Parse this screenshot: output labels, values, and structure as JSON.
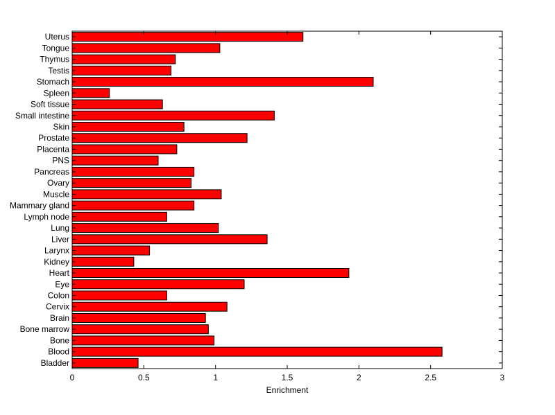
{
  "chart_data": {
    "type": "bar",
    "orientation": "horizontal",
    "categories": [
      "Uterus",
      "Tongue",
      "Thymus",
      "Testis",
      "Stomach",
      "Spleen",
      "Soft tissue",
      "Small intestine",
      "Skin",
      "Prostate",
      "Placenta",
      "PNS",
      "Pancreas",
      "Ovary",
      "Muscle",
      "Mammary gland",
      "Lymph node",
      "Lung",
      "Liver",
      "Larynx",
      "Kidney",
      "Heart",
      "Eye",
      "Colon",
      "Cervix",
      "Brain",
      "Bone marrow",
      "Bone",
      "Blood",
      "Bladder"
    ],
    "values": [
      1.61,
      1.03,
      0.72,
      0.69,
      2.1,
      0.26,
      0.63,
      1.41,
      0.78,
      1.22,
      0.73,
      0.6,
      0.85,
      0.83,
      1.04,
      0.85,
      0.66,
      1.02,
      1.36,
      0.54,
      0.43,
      1.93,
      1.2,
      0.66,
      1.08,
      0.93,
      0.95,
      0.99,
      2.58,
      0.46
    ],
    "title": "",
    "xlabel": "Enrichment",
    "ylabel": "",
    "xlim": [
      0,
      3
    ],
    "xticks": [
      "0",
      "0.5",
      "1",
      "1.5",
      "2",
      "2.5",
      "3"
    ],
    "grid": false,
    "bar_color": "#ff0000",
    "bar_edge_color": "#000000"
  }
}
